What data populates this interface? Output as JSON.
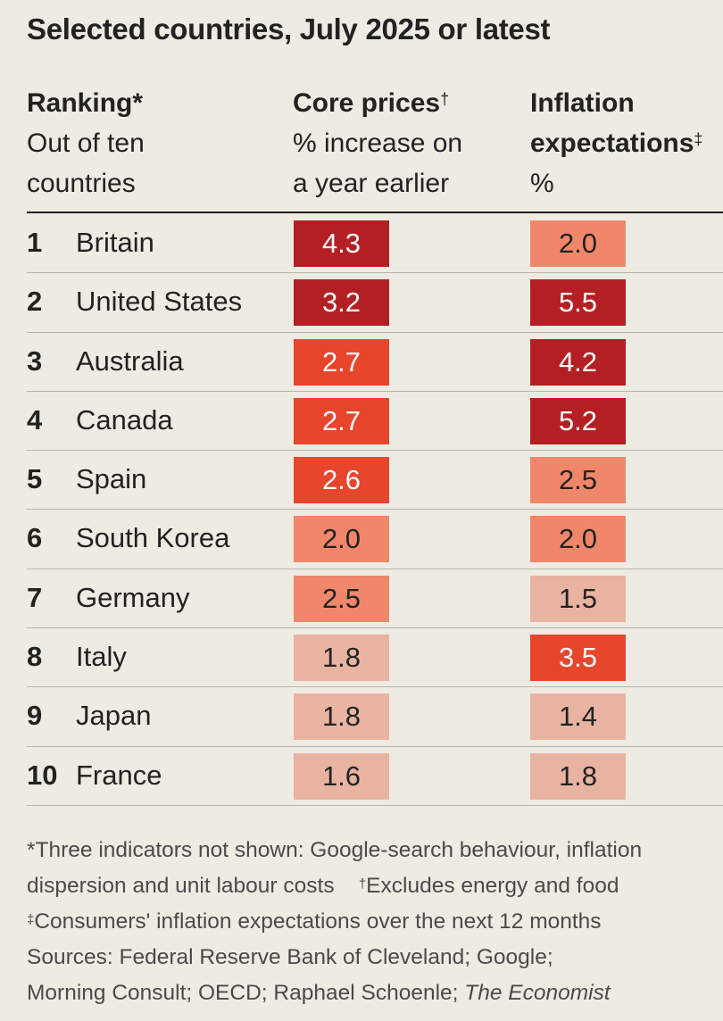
{
  "chart_data": {
    "type": "table",
    "title": "Selected countries, July 2025 or latest",
    "columns": {
      "ranking": {
        "title": "Ranking",
        "mark": "*",
        "subtitle_lines": [
          "Out of ten",
          "countries"
        ]
      },
      "core": {
        "title": "Core prices",
        "mark": "†",
        "subtitle_lines": [
          "% increase on",
          "a year earlier"
        ]
      },
      "infl": {
        "title_lines": [
          "Inflation",
          "expectations"
        ],
        "mark": "‡",
        "subtitle_lines": [
          "%"
        ]
      }
    },
    "rows": [
      {
        "rank": "1",
        "country": "Britain",
        "core": "4.3",
        "infl": "2.0"
      },
      {
        "rank": "2",
        "country": "United States",
        "core": "3.2",
        "infl": "5.5"
      },
      {
        "rank": "3",
        "country": "Australia",
        "core": "2.7",
        "infl": "4.2"
      },
      {
        "rank": "4",
        "country": "Canada",
        "core": "2.7",
        "infl": "5.2"
      },
      {
        "rank": "5",
        "country": "Spain",
        "core": "2.6",
        "infl": "2.5"
      },
      {
        "rank": "6",
        "country": "South Korea",
        "core": "2.0",
        "infl": "2.0"
      },
      {
        "rank": "7",
        "country": "Germany",
        "core": "2.5",
        "infl": "1.5"
      },
      {
        "rank": "8",
        "country": "Italy",
        "core": "1.8",
        "infl": "3.5"
      },
      {
        "rank": "9",
        "country": "Japan",
        "core": "1.8",
        "infl": "1.4"
      },
      {
        "rank": "10",
        "country": "France",
        "core": "1.6",
        "infl": "1.8"
      }
    ],
    "color_scale": {
      "dark": "#b41f24",
      "red": "#e8452d",
      "salmon": "#f0876a",
      "pink": "#e9b3a2",
      "light_text": "#ffffff",
      "dark_text": "#222222"
    },
    "footnotes": {
      "star_text": "*Three indicators not shown: Google-search behaviour, inflation",
      "star_text2": "dispersion and unit labour costs",
      "dagger_mark": "†",
      "dagger_text": "Excludes energy and food",
      "ddagger_mark": "‡",
      "ddagger_text": "Consumers' inflation expectations over the next 12 months",
      "sources_line1": "Sources: Federal Reserve Bank of Cleveland; Google;",
      "sources_line2": "Morning Consult; OECD; Raphael Schoenle;",
      "sources_italic": "The Economist"
    }
  }
}
